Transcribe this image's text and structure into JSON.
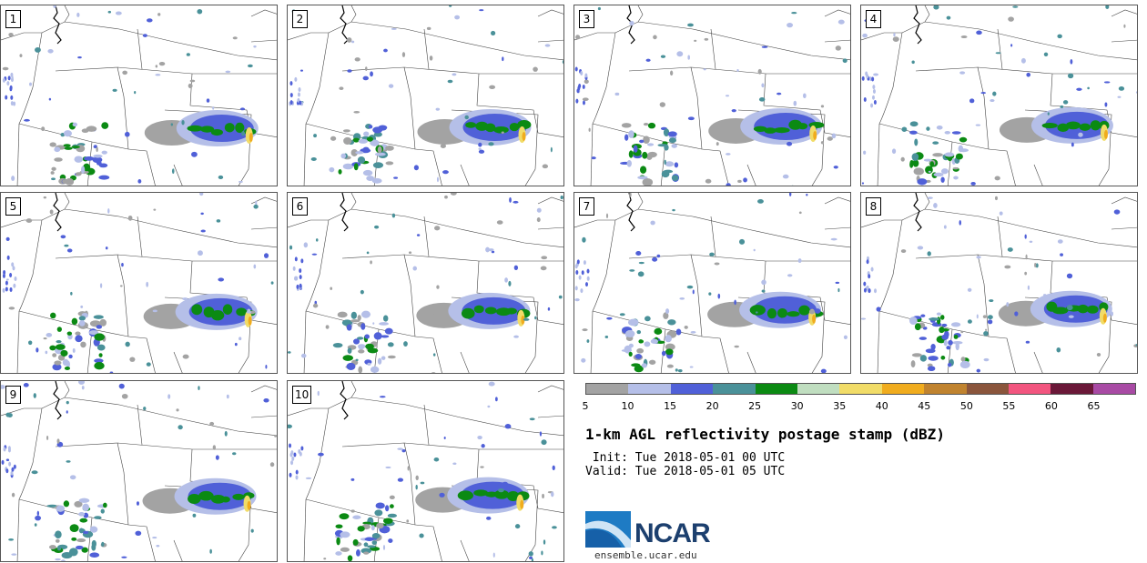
{
  "panels": [
    {
      "label": "1"
    },
    {
      "label": "2"
    },
    {
      "label": "3"
    },
    {
      "label": "4"
    },
    {
      "label": "5"
    },
    {
      "label": "6"
    },
    {
      "label": "7"
    },
    {
      "label": "8"
    },
    {
      "label": "9"
    },
    {
      "label": "10"
    }
  ],
  "colorbar": {
    "colors": [
      "#a3a3a3",
      "#b5bfe8",
      "#5060d8",
      "#4a9199",
      "#0b8a13",
      "#c0dec0",
      "#f1dc68",
      "#f0ac1e",
      "#c0832f",
      "#8a553c",
      "#f2557f",
      "#6a1838",
      "#a84aa4"
    ],
    "ticks": [
      "5",
      "10",
      "15",
      "20",
      "25",
      "30",
      "35",
      "40",
      "45",
      "50",
      "55",
      "60",
      "65"
    ]
  },
  "title": "1-km AGL reflectivity postage stamp (dBZ)",
  "init": " Init: Tue 2018-05-01 00 UTC",
  "valid": "Valid: Tue 2018-05-01 05 UTC",
  "logo": {
    "text": "NCAR",
    "site": "ensemble.ucar.edu"
  }
}
